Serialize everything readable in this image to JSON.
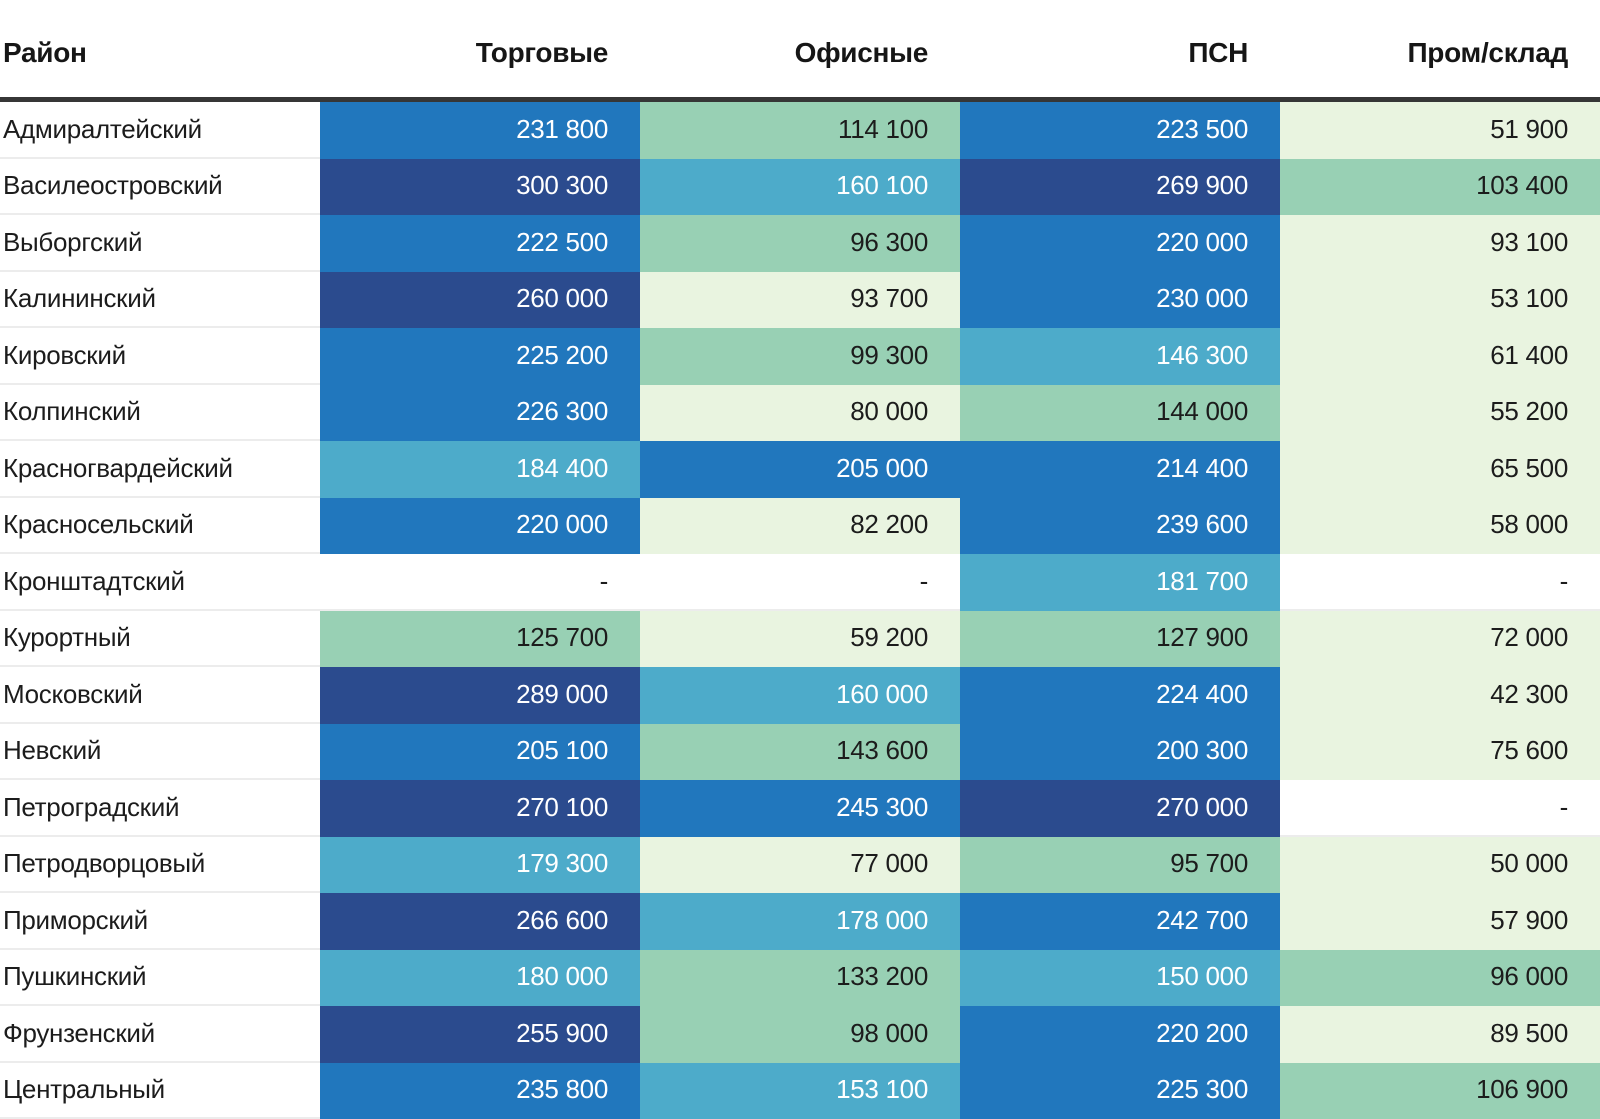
{
  "table": {
    "headers": [
      "Район",
      "Торговые",
      "Офисные",
      "ПСН",
      "Пром/склад"
    ],
    "empty_cell_text": "-",
    "rows": [
      {
        "district": "Адмиралтейский",
        "cells": [
          "231 800",
          "114 100",
          "223 500",
          "51 900"
        ]
      },
      {
        "district": "Василеостровский",
        "cells": [
          "300 300",
          "160 100",
          "269 900",
          "103 400"
        ]
      },
      {
        "district": "Выборгский",
        "cells": [
          "222 500",
          "96 300",
          "220 000",
          "93 100"
        ]
      },
      {
        "district": "Калининский",
        "cells": [
          "260 000",
          "93 700",
          "230 000",
          "53 100"
        ]
      },
      {
        "district": "Кировский",
        "cells": [
          "225 200",
          "99 300",
          "146 300",
          "61 400"
        ]
      },
      {
        "district": "Колпинский",
        "cells": [
          "226 300",
          "80 000",
          "144 000",
          "55 200"
        ]
      },
      {
        "district": "Красногвардейский",
        "cells": [
          "184 400",
          "205 000",
          "214 400",
          "65 500"
        ]
      },
      {
        "district": "Красносельский",
        "cells": [
          "220 000",
          "82 200",
          "239 600",
          "58 000"
        ]
      },
      {
        "district": "Кронштадтский",
        "cells": [
          "-",
          "-",
          "181 700",
          "-"
        ]
      },
      {
        "district": "Курортный",
        "cells": [
          "125 700",
          "59 200",
          "127 900",
          "72 000"
        ]
      },
      {
        "district": "Московский",
        "cells": [
          "289 000",
          "160 000",
          "224 400",
          "42 300"
        ]
      },
      {
        "district": "Невский",
        "cells": [
          "205 100",
          "143 600",
          "200 300",
          "75 600"
        ]
      },
      {
        "district": "Петроградский",
        "cells": [
          "270 100",
          "245 300",
          "270 000",
          "-"
        ]
      },
      {
        "district": "Петродворцовый",
        "cells": [
          "179 300",
          "77 000",
          "95 700",
          "50 000"
        ]
      },
      {
        "district": "Приморский",
        "cells": [
          "266 600",
          "178 000",
          "242 700",
          "57 900"
        ]
      },
      {
        "district": "Пушкинский",
        "cells": [
          "180 000",
          "133 200",
          "150 000",
          "96 000"
        ]
      },
      {
        "district": "Фрунзенский",
        "cells": [
          "255 900",
          "98 000",
          "220 200",
          "89 500"
        ]
      },
      {
        "district": "Центральный",
        "cells": [
          "235 800",
          "153 100",
          "225 300",
          "106 900"
        ]
      }
    ]
  },
  "theme": {
    "header_rule_color": "#363636",
    "row_line_color": "#ececec",
    "header_text_color": "#161616",
    "dark_cell_text_color": "#1c1c1c",
    "light_cell_text_color": "#ffffff"
  },
  "chart_data": {
    "type": "table",
    "columns": [
      "Район",
      "Торговые",
      "Офисные",
      "ПСН",
      "Пром/склад"
    ],
    "rows": [
      {
        "district": "Адмиралтейский",
        "values": [
          231800,
          114100,
          223500,
          51900
        ]
      },
      {
        "district": "Василеостровский",
        "values": [
          300300,
          160100,
          269900,
          103400
        ]
      },
      {
        "district": "Выборгский",
        "values": [
          222500,
          96300,
          220000,
          93100
        ]
      },
      {
        "district": "Калининский",
        "values": [
          260000,
          93700,
          230000,
          53100
        ]
      },
      {
        "district": "Кировский",
        "values": [
          225200,
          99300,
          146300,
          61400
        ]
      },
      {
        "district": "Колпинский",
        "values": [
          226300,
          80000,
          144000,
          55200
        ]
      },
      {
        "district": "Красногвардейский",
        "values": [
          184400,
          205000,
          214400,
          65500
        ]
      },
      {
        "district": "Красносельский",
        "values": [
          220000,
          82200,
          239600,
          58000
        ]
      },
      {
        "district": "Кронштадтский",
        "values": [
          null,
          null,
          181700,
          null
        ]
      },
      {
        "district": "Курортный",
        "values": [
          125700,
          59200,
          127900,
          72000
        ]
      },
      {
        "district": "Московский",
        "values": [
          289000,
          160000,
          224400,
          42300
        ]
      },
      {
        "district": "Невский",
        "values": [
          205100,
          143600,
          200300,
          75600
        ]
      },
      {
        "district": "Петроградский",
        "values": [
          270100,
          245300,
          270000,
          null
        ]
      },
      {
        "district": "Петродворцовый",
        "values": [
          179300,
          77000,
          95700,
          50000
        ]
      },
      {
        "district": "Приморский",
        "values": [
          266600,
          178000,
          242700,
          57900
        ]
      },
      {
        "district": "Пушкинский",
        "values": [
          180000,
          133200,
          150000,
          96000
        ]
      },
      {
        "district": "Фрунзенский",
        "values": [
          255900,
          98000,
          220200,
          89500
        ]
      },
      {
        "district": "Центральный",
        "values": [
          235800,
          153100,
          225300,
          106900
        ]
      }
    ],
    "heatmap": {
      "thresholds": [
        95000,
        145000,
        200000,
        250000
      ],
      "bin_colors": [
        "#e9f4e0",
        "#98d0b4",
        "#4dabca",
        "#2177bd",
        "#2b4b8e"
      ],
      "bin_text_colors": [
        "#1c1c1c",
        "#1c1c1c",
        "#ffffff",
        "#ffffff",
        "#ffffff"
      ]
    },
    "layout": {
      "grid": false,
      "legend": false,
      "value_alignment": "right"
    }
  }
}
